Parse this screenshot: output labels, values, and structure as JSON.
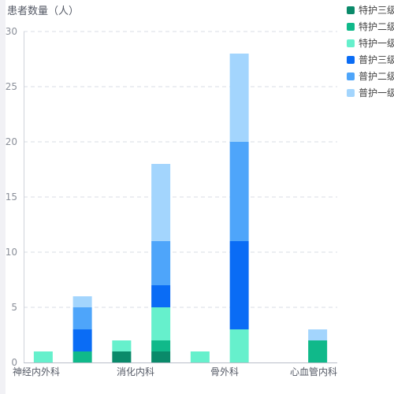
{
  "chart_data": {
    "type": "bar",
    "stacked": true,
    "ylabel": "患者数量（人）",
    "ylim": [
      0,
      30
    ],
    "yticks": [
      0,
      5,
      10,
      15,
      20,
      25,
      30
    ],
    "grid": true,
    "legend_position": "top-right",
    "x_tick_labels": [
      "神经内外科",
      "消化内科",
      "骨外科",
      "心血管内科"
    ],
    "groups": [
      {
        "label": "神经内外科",
        "bars": [
          {
            "特护三级": 0,
            "特护二级": 0,
            "特护一级": 1,
            "普护三级": 0,
            "普护二级": 0,
            "普护一级": 0
          },
          {
            "特护三级": 0,
            "特护二级": 1,
            "特护一级": 0,
            "普护三级": 2,
            "普护二级": 2,
            "普护一级": 1
          }
        ]
      },
      {
        "label": "消化内科",
        "bars": [
          {
            "特护三级": 1,
            "特护二级": 0,
            "特护一级": 1,
            "普护三级": 0,
            "普护二级": 0,
            "普护一级": 0
          },
          {
            "特护三级": 1,
            "特护二级": 1,
            "特护一级": 3,
            "普护三级": 2,
            "普护二级": 4,
            "普护一级": 7
          }
        ]
      },
      {
        "label": "骨外科",
        "bars": [
          {
            "特护三级": 0,
            "特护二级": 0,
            "特护一级": 1,
            "普护三级": 0,
            "普护二级": 0,
            "普护一级": 0
          },
          {
            "特护三级": 0,
            "特护二级": 0,
            "特护一级": 3,
            "普护三级": 8,
            "普护二级": 9,
            "普护一级": 8
          }
        ]
      },
      {
        "label": "心血管内科",
        "bars": [
          {
            "特护三级": 0,
            "特护二级": 0,
            "特护一级": 0,
            "普护三级": 0,
            "普护二级": 0,
            "普护一级": 0
          },
          {
            "特护三级": 0,
            "特护二级": 2,
            "特护一级": 0,
            "普护三级": 0,
            "普护二级": 0,
            "普护一级": 1
          }
        ]
      }
    ],
    "series": [
      {
        "name": "特护三级",
        "color": "#0a8a6a"
      },
      {
        "name": "特护二级",
        "color": "#10b98a"
      },
      {
        "name": "特护一级",
        "color": "#66f0cc"
      },
      {
        "name": "普护三级",
        "color": "#0a6cf5"
      },
      {
        "name": "普护二级",
        "color": "#4ea5fa"
      },
      {
        "name": "普护一级",
        "color": "#a3d5fd"
      }
    ]
  }
}
